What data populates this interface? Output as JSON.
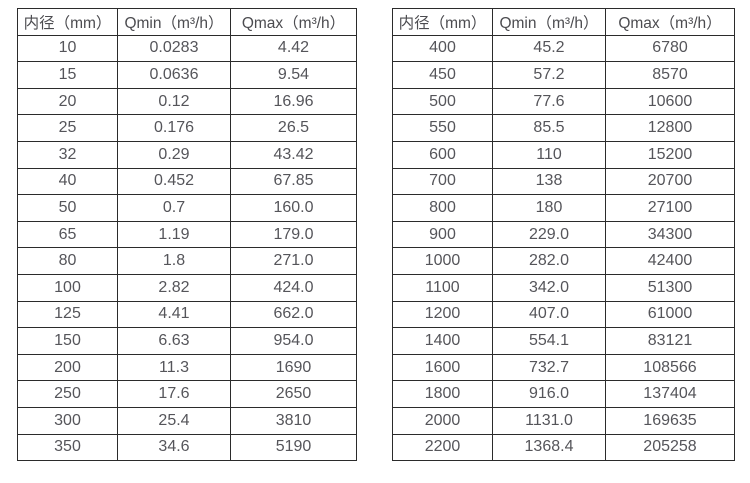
{
  "tables": [
    {
      "name": "small-diameter-flow-table",
      "headers": [
        "内径（mm）",
        "Qmin（m³/h）",
        "Qmax（m³/h）"
      ],
      "rows": [
        [
          "10",
          "0.0283",
          "4.42"
        ],
        [
          "15",
          "0.0636",
          "9.54"
        ],
        [
          "20",
          "0.12",
          "16.96"
        ],
        [
          "25",
          "0.176",
          "26.5"
        ],
        [
          "32",
          "0.29",
          "43.42"
        ],
        [
          "40",
          "0.452",
          "67.85"
        ],
        [
          "50",
          "0.7",
          "160.0"
        ],
        [
          "65",
          "1.19",
          "179.0"
        ],
        [
          "80",
          "1.8",
          "271.0"
        ],
        [
          "100",
          "2.82",
          "424.0"
        ],
        [
          "125",
          "4.41",
          "662.0"
        ],
        [
          "150",
          "6.63",
          "954.0"
        ],
        [
          "200",
          "11.3",
          "1690"
        ],
        [
          "250",
          "17.6",
          "2650"
        ],
        [
          "300",
          "25.4",
          "3810"
        ],
        [
          "350",
          "34.6",
          "5190"
        ]
      ]
    },
    {
      "name": "large-diameter-flow-table",
      "headers": [
        "内径（mm）",
        "Qmin（m³/h）",
        "Qmax（m³/h）"
      ],
      "rows": [
        [
          "400",
          "45.2",
          "6780"
        ],
        [
          "450",
          "57.2",
          "8570"
        ],
        [
          "500",
          "77.6",
          "10600"
        ],
        [
          "550",
          "85.5",
          "12800"
        ],
        [
          "600",
          "110",
          "15200"
        ],
        [
          "700",
          "138",
          "20700"
        ],
        [
          "800",
          "180",
          "27100"
        ],
        [
          "900",
          "229.0",
          "34300"
        ],
        [
          "1000",
          "282.0",
          "42400"
        ],
        [
          "1100",
          "342.0",
          "51300"
        ],
        [
          "1200",
          "407.0",
          "61000"
        ],
        [
          "1400",
          "554.1",
          "83121"
        ],
        [
          "1600",
          "732.7",
          "108566"
        ],
        [
          "1800",
          "916.0",
          "137404"
        ],
        [
          "2000",
          "1131.0",
          "169635"
        ],
        [
          "2200",
          "1368.4",
          "205258"
        ]
      ]
    }
  ]
}
